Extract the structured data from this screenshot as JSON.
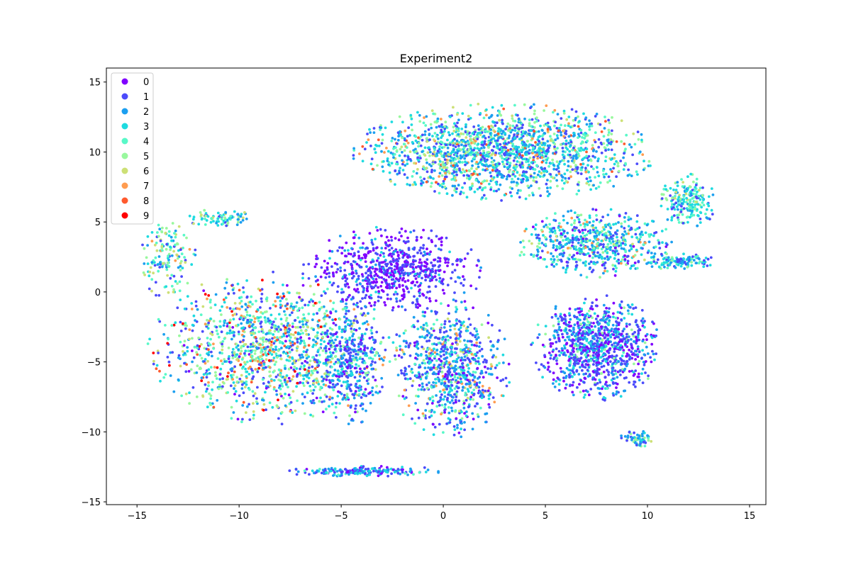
{
  "chart_data": {
    "type": "scatter",
    "title": "Experiment2",
    "xlabel": "",
    "ylabel": "",
    "xlim": [
      -16.5,
      15.8
    ],
    "ylim": [
      -15.2,
      16.0
    ],
    "xticks": [
      -15,
      -10,
      -5,
      0,
      5,
      10,
      15
    ],
    "yticks": [
      -15,
      -10,
      -5,
      0,
      5,
      10,
      15
    ],
    "xtick_labels": [
      "−15",
      "−10",
      "−5",
      "0",
      "5",
      "10",
      "15"
    ],
    "ytick_labels": [
      "−15",
      "−10",
      "−5",
      "0",
      "5",
      "10",
      "15"
    ],
    "grid": false,
    "legend_position": "upper-left",
    "series": [
      {
        "name": "0",
        "color": "#8000ff"
      },
      {
        "name": "1",
        "color": "#4c4bfb"
      },
      {
        "name": "2",
        "color": "#1c9ff0"
      },
      {
        "name": "3",
        "color": "#1edbe0"
      },
      {
        "name": "4",
        "color": "#59f8c8"
      },
      {
        "name": "5",
        "color": "#99f89e"
      },
      {
        "name": "6",
        "color": "#cde076"
      },
      {
        "name": "7",
        "color": "#ff9c50"
      },
      {
        "name": "8",
        "color": "#ff5a2e"
      },
      {
        "name": "9",
        "color": "#ff0000"
      }
    ],
    "clusters": [
      {
        "cx": -8.5,
        "cy": -4.0,
        "rx": 6.0,
        "ry": 5.5,
        "n": 1300,
        "weights": [
          1,
          6,
          5,
          5,
          5,
          4,
          3,
          2,
          1,
          1
        ]
      },
      {
        "cx": -13.5,
        "cy": 2.5,
        "rx": 1.5,
        "ry": 3.0,
        "n": 150,
        "weights": [
          0,
          2,
          3,
          4,
          5,
          5,
          3,
          1,
          0,
          0
        ]
      },
      {
        "cx": -11.0,
        "cy": 5.3,
        "rx": 1.8,
        "ry": 0.6,
        "n": 80,
        "weights": [
          0,
          3,
          4,
          5,
          3,
          2,
          1,
          0,
          0,
          0
        ]
      },
      {
        "cx": -2.5,
        "cy": 1.5,
        "rx": 4.5,
        "ry": 3.2,
        "n": 700,
        "weights": [
          8,
          8,
          2,
          1,
          0,
          0,
          0,
          0,
          0,
          0
        ]
      },
      {
        "cx": 0.3,
        "cy": -5.5,
        "rx": 3.0,
        "ry": 5.0,
        "n": 800,
        "weights": [
          2,
          8,
          6,
          4,
          2,
          1,
          1,
          1,
          0,
          0
        ]
      },
      {
        "cx": -4.5,
        "cy": -5.0,
        "rx": 1.8,
        "ry": 4.5,
        "n": 350,
        "weights": [
          2,
          7,
          6,
          3,
          1,
          1,
          0,
          0,
          0,
          0
        ]
      },
      {
        "cx": -4.0,
        "cy": -12.8,
        "rx": 4.0,
        "ry": 0.4,
        "n": 180,
        "weights": [
          1,
          6,
          5,
          3,
          1,
          0,
          0,
          0,
          0,
          0
        ]
      },
      {
        "cx": 3.0,
        "cy": 10.0,
        "rx": 7.5,
        "ry": 3.5,
        "n": 1700,
        "weights": [
          0,
          5,
          6,
          6,
          4,
          3,
          2,
          1,
          1,
          0
        ]
      },
      {
        "cx": 7.5,
        "cy": 3.5,
        "rx": 4.0,
        "ry": 2.5,
        "n": 600,
        "weights": [
          1,
          5,
          6,
          5,
          3,
          2,
          1,
          1,
          0,
          0
        ]
      },
      {
        "cx": 7.5,
        "cy": -4.0,
        "rx": 3.2,
        "ry": 3.8,
        "n": 1000,
        "weights": [
          5,
          9,
          6,
          3,
          1,
          1,
          0,
          0,
          0,
          0
        ]
      },
      {
        "cx": 12.0,
        "cy": 6.5,
        "rx": 1.4,
        "ry": 2.0,
        "n": 200,
        "weights": [
          0,
          2,
          3,
          6,
          4,
          3,
          1,
          0,
          0,
          0
        ]
      },
      {
        "cx": 11.5,
        "cy": 2.2,
        "rx": 1.8,
        "ry": 0.6,
        "n": 120,
        "weights": [
          0,
          4,
          5,
          5,
          2,
          1,
          0,
          0,
          0,
          0
        ]
      },
      {
        "cx": 9.5,
        "cy": -10.5,
        "rx": 0.9,
        "ry": 0.6,
        "n": 60,
        "weights": [
          0,
          4,
          5,
          3,
          2,
          1,
          1,
          0,
          0,
          0
        ]
      }
    ]
  }
}
